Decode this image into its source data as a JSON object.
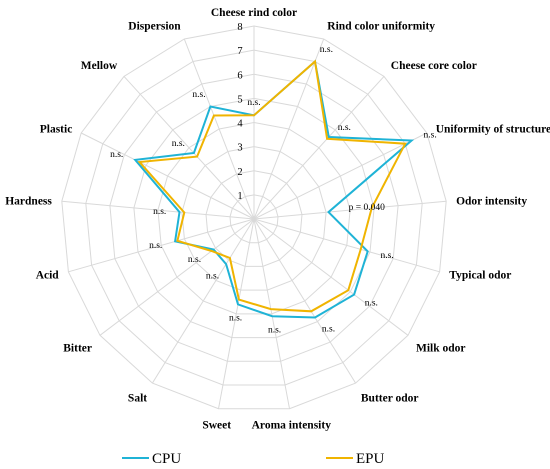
{
  "chart_data": {
    "type": "radar",
    "axes": [
      "Cheese rind color",
      "Rind color uniformity",
      "Cheese core color",
      "Uniformity of structure",
      "Odor intensity",
      "Typical odor",
      "Milk odor",
      "Butter odor",
      "Aroma intensity",
      "Sweet",
      "Salt",
      "Bitter",
      "Acid",
      "Hardness",
      "Plastic",
      "Mellow",
      "Dispersion"
    ],
    "rlim": [
      0,
      8
    ],
    "ticks": [
      "1",
      "2",
      "3",
      "4",
      "5",
      "6",
      "7",
      "8"
    ],
    "significance": [
      "n.s.",
      "n.s.",
      "n.s.",
      "n.s.",
      "p = 0.040",
      "n.s.",
      "n.s.",
      "n.s.",
      "n.s.",
      "n.s.",
      "n.s.",
      "n.s.",
      "n.s.",
      "n.s.",
      "n.s.",
      "n.s.",
      "n.s."
    ],
    "series": [
      {
        "name": "CPU",
        "color": "#1fb3d6",
        "values": [
          4.3,
          7.0,
          4.6,
          7.3,
          3.1,
          4.9,
          5.2,
          4.8,
          4.1,
          3.6,
          2.2,
          2.1,
          3.4,
          3.1,
          5.5,
          3.7,
          5.0
        ]
      },
      {
        "name": "EPU",
        "color": "#f0b400",
        "values": [
          4.3,
          7.0,
          4.5,
          7.0,
          4.9,
          4.6,
          4.9,
          4.5,
          3.8,
          3.4,
          1.9,
          2.2,
          3.3,
          2.9,
          5.3,
          3.5,
          4.6
        ]
      }
    ],
    "grid": true,
    "legend": "bottom"
  }
}
